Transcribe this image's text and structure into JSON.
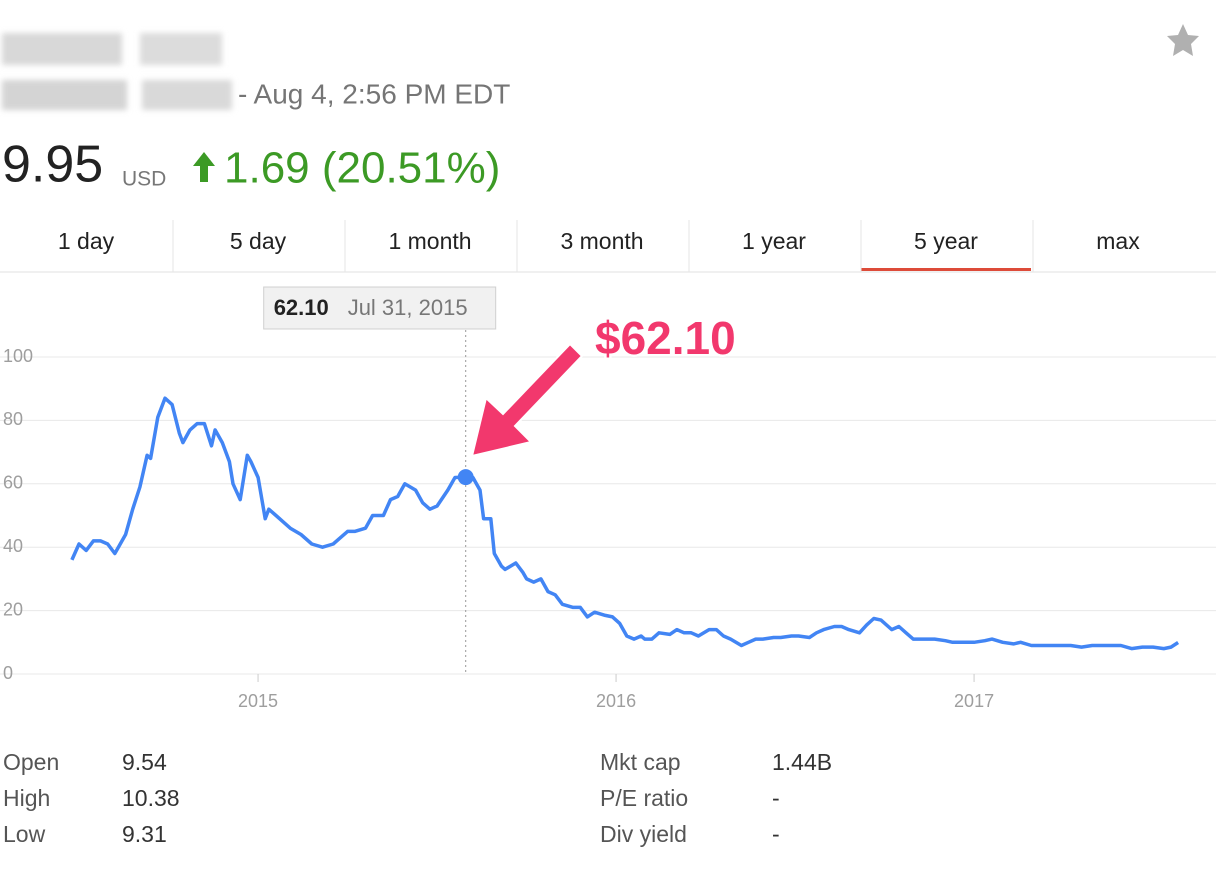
{
  "header": {
    "timestamp": "- Aug 4, 2:56 PM EDT",
    "price": "9.95",
    "currency": "USD",
    "change": "1.69 (20.51%)"
  },
  "tabs": {
    "items": [
      "1 day",
      "5 day",
      "1 month",
      "3 month",
      "1 year",
      "5 year",
      "max"
    ],
    "active": 5
  },
  "chart_data": {
    "type": "line",
    "color": "#4285f4",
    "grid": true,
    "xlim": [
      2014.363,
      2017.659
    ],
    "xticks": [
      2015,
      2016,
      2017
    ],
    "ylim": [
      0,
      100
    ],
    "yticks": [
      0,
      20,
      40,
      60,
      80,
      100
    ],
    "x": [
      2014.48,
      2014.5,
      2014.52,
      2014.54,
      2014.56,
      2014.58,
      2014.6,
      2014.61,
      2014.63,
      2014.65,
      2014.67,
      2014.69,
      2014.7,
      2014.72,
      2014.74,
      2014.76,
      2014.78,
      2014.79,
      2014.81,
      2014.83,
      2014.85,
      2014.87,
      2014.88,
      2014.9,
      2014.92,
      2014.93,
      2014.95,
      2014.97,
      2014.98,
      2015.0,
      2015.02,
      2015.03,
      2015.05,
      2015.07,
      2015.09,
      2015.12,
      2015.15,
      2015.18,
      2015.21,
      2015.23,
      2015.25,
      2015.27,
      2015.3,
      2015.32,
      2015.35,
      2015.37,
      2015.39,
      2015.41,
      2015.44,
      2015.46,
      2015.48,
      2015.5,
      2015.53,
      2015.55,
      2015.58,
      2015.6,
      2015.62,
      2015.63,
      2015.65,
      2015.66,
      2015.68,
      2015.69,
      2015.72,
      2015.74,
      2015.75,
      2015.77,
      2015.79,
      2015.81,
      2015.83,
      2015.85,
      2015.88,
      2015.9,
      2015.92,
      2015.94,
      2015.97,
      2015.99,
      2016.01,
      2016.03,
      2016.05,
      2016.07,
      2016.08,
      2016.1,
      2016.12,
      2016.15,
      2016.17,
      2016.19,
      2016.21,
      2016.23,
      2016.26,
      2016.28,
      2016.3,
      2016.32,
      2016.35,
      2016.37,
      2016.39,
      2016.41,
      2016.44,
      2016.46,
      2016.49,
      2016.51,
      2016.54,
      2016.56,
      2016.58,
      2016.61,
      2016.63,
      2016.65,
      2016.68,
      2016.7,
      2016.72,
      2016.74,
      2016.77,
      2016.79,
      2016.81,
      2016.83,
      2016.86,
      2016.89,
      2016.92,
      2016.94,
      2016.97,
      2017.0,
      2017.03,
      2017.05,
      2017.08,
      2017.11,
      2017.13,
      2017.16,
      2017.19,
      2017.22,
      2017.25,
      2017.27,
      2017.3,
      2017.33,
      2017.36,
      2017.39,
      2017.41,
      2017.44,
      2017.47,
      2017.5,
      2017.53,
      2017.55,
      2017.57
    ],
    "values": [
      36,
      41,
      39,
      42,
      42,
      41,
      38,
      40,
      44,
      52,
      59,
      69,
      68,
      81,
      87,
      85,
      76,
      73,
      77,
      79,
      79,
      72,
      77,
      73,
      67,
      60,
      55,
      69,
      67,
      62,
      49,
      52,
      50,
      48,
      46,
      44,
      41,
      40,
      41,
      43,
      45,
      45,
      46,
      50,
      50,
      55,
      56,
      60,
      58,
      54,
      52,
      53,
      58,
      62,
      62.1,
      62,
      58,
      49,
      49,
      38,
      34,
      33,
      35,
      32,
      30,
      29,
      30,
      26,
      25,
      22,
      21,
      21,
      18,
      19.5,
      18.5,
      18,
      16,
      12,
      11,
      12,
      11,
      11,
      13,
      12.5,
      14,
      13,
      13,
      12,
      14,
      14,
      12,
      11,
      9,
      10,
      11,
      11,
      11.5,
      11.5,
      12,
      12,
      11.5,
      13,
      14,
      15,
      15,
      14,
      13,
      15.5,
      17.5,
      17,
      14,
      15,
      13,
      11,
      11,
      11,
      10.5,
      10,
      10,
      10,
      10.5,
      11,
      10,
      9.5,
      10,
      9,
      9,
      9,
      9,
      9,
      8.5,
      9,
      9,
      9,
      9,
      8,
      8.5,
      8.5,
      8,
      8.5,
      9.95
    ],
    "tooltip": {
      "x": 2015.58,
      "value": 62.1,
      "label": "62.10",
      "date": "Jul 31, 2015"
    },
    "annotation": "$62.10"
  },
  "stats": {
    "left": [
      [
        "Open",
        "9.54"
      ],
      [
        "High",
        "10.38"
      ],
      [
        "Low",
        "9.31"
      ]
    ],
    "right": [
      [
        "Mkt cap",
        "1.44B"
      ],
      [
        "P/E ratio",
        "-"
      ],
      [
        "Div yield",
        "-"
      ]
    ]
  }
}
